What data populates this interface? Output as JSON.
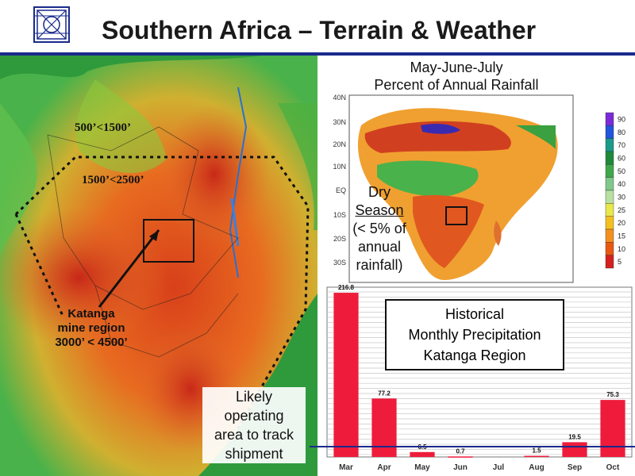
{
  "title": "Southern Africa – Terrain & Weather",
  "terrain": {
    "elev_label_1": "500’<1500’",
    "elev_label_2": "1500’<2500’",
    "katanga_line1": "Katanga",
    "katanga_line2": "mine region",
    "katanga_line3": "3000’ < 4500’",
    "operating_line1": "Likely",
    "operating_line2": "operating",
    "operating_line3": "area to track",
    "operating_line4": "shipment"
  },
  "rainfall_map": {
    "title_line1": "May-June-July",
    "title_line2": "Percent of Annual Rainfall",
    "lat_labels": [
      "40N",
      "30N",
      "20N",
      "10N",
      "EQ",
      "10S",
      "20S",
      "30S"
    ],
    "dry_line1": "Dry",
    "dry_line2": "Season",
    "dry_line3": "(< 5% of",
    "dry_line4": "annual",
    "dry_line5": "rainfall)"
  },
  "colorbar": {
    "labels": [
      "90",
      "80",
      "70",
      "60",
      "50",
      "40",
      "30",
      "25",
      "20",
      "15",
      "10",
      "5"
    ],
    "colors": [
      "#7a2bd6",
      "#2255dd",
      "#1a9a8a",
      "#1f8a3a",
      "#3fa84a",
      "#7fc88a",
      "#b8e0a0",
      "#e8e84a",
      "#f4c020",
      "#f49020",
      "#e85a10",
      "#d42020"
    ]
  },
  "historical": {
    "title_line1": "Historical",
    "title_line2": "Monthly Precipitation",
    "title_line3": "Katanga Region"
  },
  "chart_data": {
    "type": "bar",
    "categories": [
      "Mar",
      "Apr",
      "May",
      "Jun",
      "Jul",
      "Aug",
      "Sep",
      "Oct"
    ],
    "values": [
      216.8,
      77.2,
      6.5,
      0.7,
      0,
      1.5,
      19.5,
      75.3
    ],
    "value_labels": [
      "216.8",
      "77.2",
      "6.5",
      "0.7",
      "",
      "1.5",
      "19.5",
      "75.3"
    ],
    "title": "Historical Monthly Precipitation Katanga Region",
    "ylim": [
      0,
      220
    ],
    "grid": true,
    "bar_color": "#ee1c3a"
  }
}
